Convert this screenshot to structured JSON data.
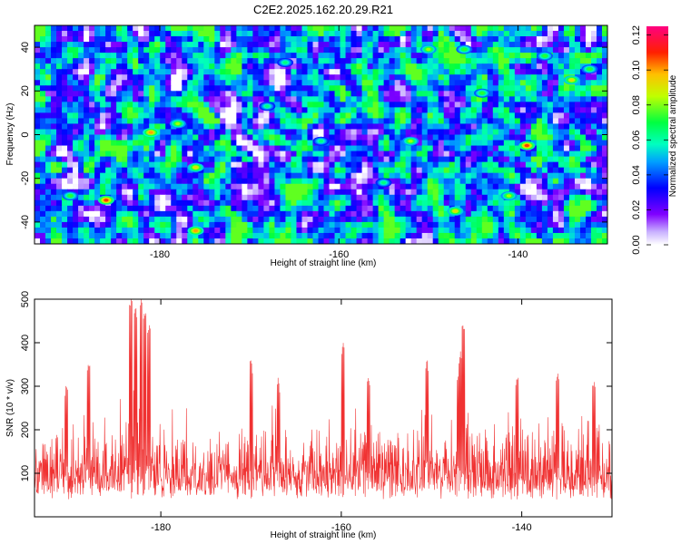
{
  "title": "C2E2.2025.162.20.29.R21",
  "chart_data": [
    {
      "type": "heatmap",
      "xlabel": "Height of straight line (km)",
      "ylabel": "Frequency (Hz)",
      "xlim": [
        -194,
        -130
      ],
      "ylim": [
        -50,
        50
      ],
      "xticks": [
        -180,
        -160,
        -140
      ],
      "yticks": [
        -40,
        -20,
        0,
        20,
        40
      ],
      "colorbar": {
        "label": "Normalized spectral amplitude",
        "range": [
          0.0,
          0.125
        ],
        "ticks": [
          "0.00",
          "0.02",
          "0.04",
          "0.06",
          "0.08",
          "0.10",
          "0.12"
        ],
        "colors": [
          "#ffffff",
          "#8000ff",
          "#0000ff",
          "#00c0ff",
          "#00ff80",
          "#c0ff00",
          "#ffc000",
          "#ff0000",
          "#ff0080"
        ]
      },
      "peaks": [
        {
          "x": -186,
          "y": -30,
          "value": 0.12
        },
        {
          "x": -181,
          "y": 1,
          "value": 0.11
        },
        {
          "x": -176,
          "y": -44,
          "value": 0.11
        },
        {
          "x": -176,
          "y": -15,
          "value": 0.1
        },
        {
          "x": -178,
          "y": 5,
          "value": 0.09
        },
        {
          "x": -152,
          "y": -3,
          "value": 0.09
        },
        {
          "x": -150,
          "y": 39,
          "value": 0.09
        },
        {
          "x": -146,
          "y": 39,
          "value": 0.08
        },
        {
          "x": -147,
          "y": -35,
          "value": 0.1
        },
        {
          "x": -139,
          "y": -5,
          "value": 0.12
        },
        {
          "x": -141,
          "y": -28,
          "value": 0.09
        },
        {
          "x": -134,
          "y": 25,
          "value": 0.1
        },
        {
          "x": -144,
          "y": 19,
          "value": 0.08
        },
        {
          "x": -155,
          "y": -22,
          "value": 0.07
        },
        {
          "x": -168,
          "y": 13,
          "value": 0.07
        },
        {
          "x": -162,
          "y": -3,
          "value": 0.07
        },
        {
          "x": -190,
          "y": -28,
          "value": 0.08
        },
        {
          "x": -166,
          "y": 33,
          "value": 0.07
        },
        {
          "x": -137,
          "y": 36,
          "value": 0.08
        },
        {
          "x": -132,
          "y": 30,
          "value": 0.08
        }
      ]
    },
    {
      "type": "line",
      "color": "#f03232",
      "xlabel": "Height of straight line (km)",
      "ylabel": "SNR (10 * v/v)",
      "xlim": [
        -194,
        -130
      ],
      "ylim": [
        0,
        500
      ],
      "xticks": [
        -180,
        -160,
        -140
      ],
      "yticks": [
        100,
        200,
        300,
        400,
        500
      ],
      "noise_floor": [
        60,
        200
      ],
      "spikes": [
        {
          "x": -183.3,
          "y": 500
        },
        {
          "x": -182.8,
          "y": 480
        },
        {
          "x": -182.2,
          "y": 500
        },
        {
          "x": -181.8,
          "y": 470
        },
        {
          "x": -181.3,
          "y": 440
        },
        {
          "x": -188,
          "y": 350
        },
        {
          "x": -190.5,
          "y": 300
        },
        {
          "x": -170,
          "y": 360
        },
        {
          "x": -167,
          "y": 320
        },
        {
          "x": -159.8,
          "y": 400
        },
        {
          "x": -157,
          "y": 320
        },
        {
          "x": -150.5,
          "y": 360
        },
        {
          "x": -147,
          "y": 330
        },
        {
          "x": -146.8,
          "y": 380
        },
        {
          "x": -146.5,
          "y": 440
        },
        {
          "x": -140.5,
          "y": 320
        },
        {
          "x": -136,
          "y": 330
        },
        {
          "x": -132,
          "y": 310
        }
      ]
    }
  ]
}
